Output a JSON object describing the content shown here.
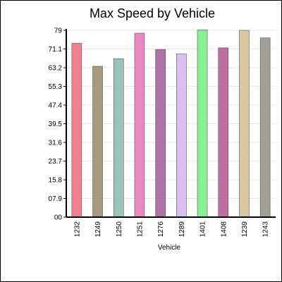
{
  "chart_data": {
    "type": "bar",
    "title": "Max Speed by Vehicle",
    "xlabel": "Vehicle",
    "ylabel": "",
    "categories": [
      "1232",
      "1249",
      "1250",
      "1251",
      "1276",
      "1289",
      "1401",
      "1408",
      "1239",
      "1243"
    ],
    "values": [
      73.5,
      63.8,
      67.0,
      77.8,
      70.9,
      69.0,
      79.2,
      71.6,
      79.0,
      75.8
    ],
    "y_ticks": [
      "00",
      "07.9",
      "15.8",
      "23.7",
      "31.6",
      "39.5",
      "47.4",
      "55.3",
      "63.2",
      "71.1",
      "79"
    ],
    "ylim": [
      0,
      79
    ],
    "grid": true,
    "legend": "none",
    "colors": [
      "#f08090",
      "#a89a80",
      "#98c4bc",
      "#e888c0",
      "#b070a8",
      "#d8c0f0",
      "#88f090",
      "#c070a0",
      "#d8c8a0",
      "#a0a098"
    ]
  }
}
